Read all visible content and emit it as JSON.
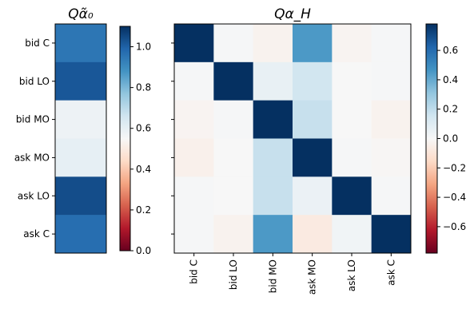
{
  "chart_data": [
    {
      "type": "heatmap",
      "title": "Qα̃₀",
      "rows": [
        "bid C",
        "bid LO",
        "bid MO",
        "ask MO",
        "ask LO",
        "ask C"
      ],
      "columns": [],
      "values": [
        [
          0.95
        ],
        [
          1.02
        ],
        [
          0.58
        ],
        [
          0.6
        ],
        [
          1.04
        ],
        [
          0.97
        ]
      ],
      "colorbar": {
        "min": 0.0,
        "max": 1.1,
        "ticks": [
          "0.0",
          "0.2",
          "0.4",
          "0.6",
          "0.8",
          "1.0"
        ],
        "tick_values": [
          0,
          0.2,
          0.4,
          0.6,
          0.8,
          1.0
        ]
      },
      "colormap": "RdBu",
      "grid": false
    },
    {
      "type": "heatmap",
      "title": "Qα_H",
      "rows": [
        "bid C",
        "bid LO",
        "bid MO",
        "ask MO",
        "ask LO",
        "ask C"
      ],
      "columns": [
        "bid C",
        "bid LO",
        "bid MO",
        "ask MO",
        "ask LO",
        "ask C"
      ],
      "values": [
        [
          0.78,
          0.01,
          -0.03,
          0.45,
          -0.02,
          0.01
        ],
        [
          0.01,
          0.78,
          0.06,
          0.15,
          0.0,
          0.01
        ],
        [
          -0.02,
          0.01,
          0.78,
          0.18,
          0.0,
          -0.03
        ],
        [
          -0.04,
          0.0,
          0.18,
          0.78,
          0.01,
          -0.01
        ],
        [
          0.01,
          0.0,
          0.18,
          0.05,
          0.78,
          0.01
        ],
        [
          0.01,
          -0.03,
          0.45,
          -0.07,
          0.03,
          0.78
        ]
      ],
      "colorbar": {
        "min": -0.78,
        "max": 0.78,
        "ticks": [
          "−0.6",
          "−0.4",
          "−0.2",
          "0.0",
          "0.2",
          "0.4",
          "0.6"
        ],
        "tick_values": [
          -0.6,
          -0.4,
          -0.2,
          0,
          0.2,
          0.4,
          0.6
        ]
      },
      "colormap": "RdBu",
      "grid": false
    }
  ]
}
